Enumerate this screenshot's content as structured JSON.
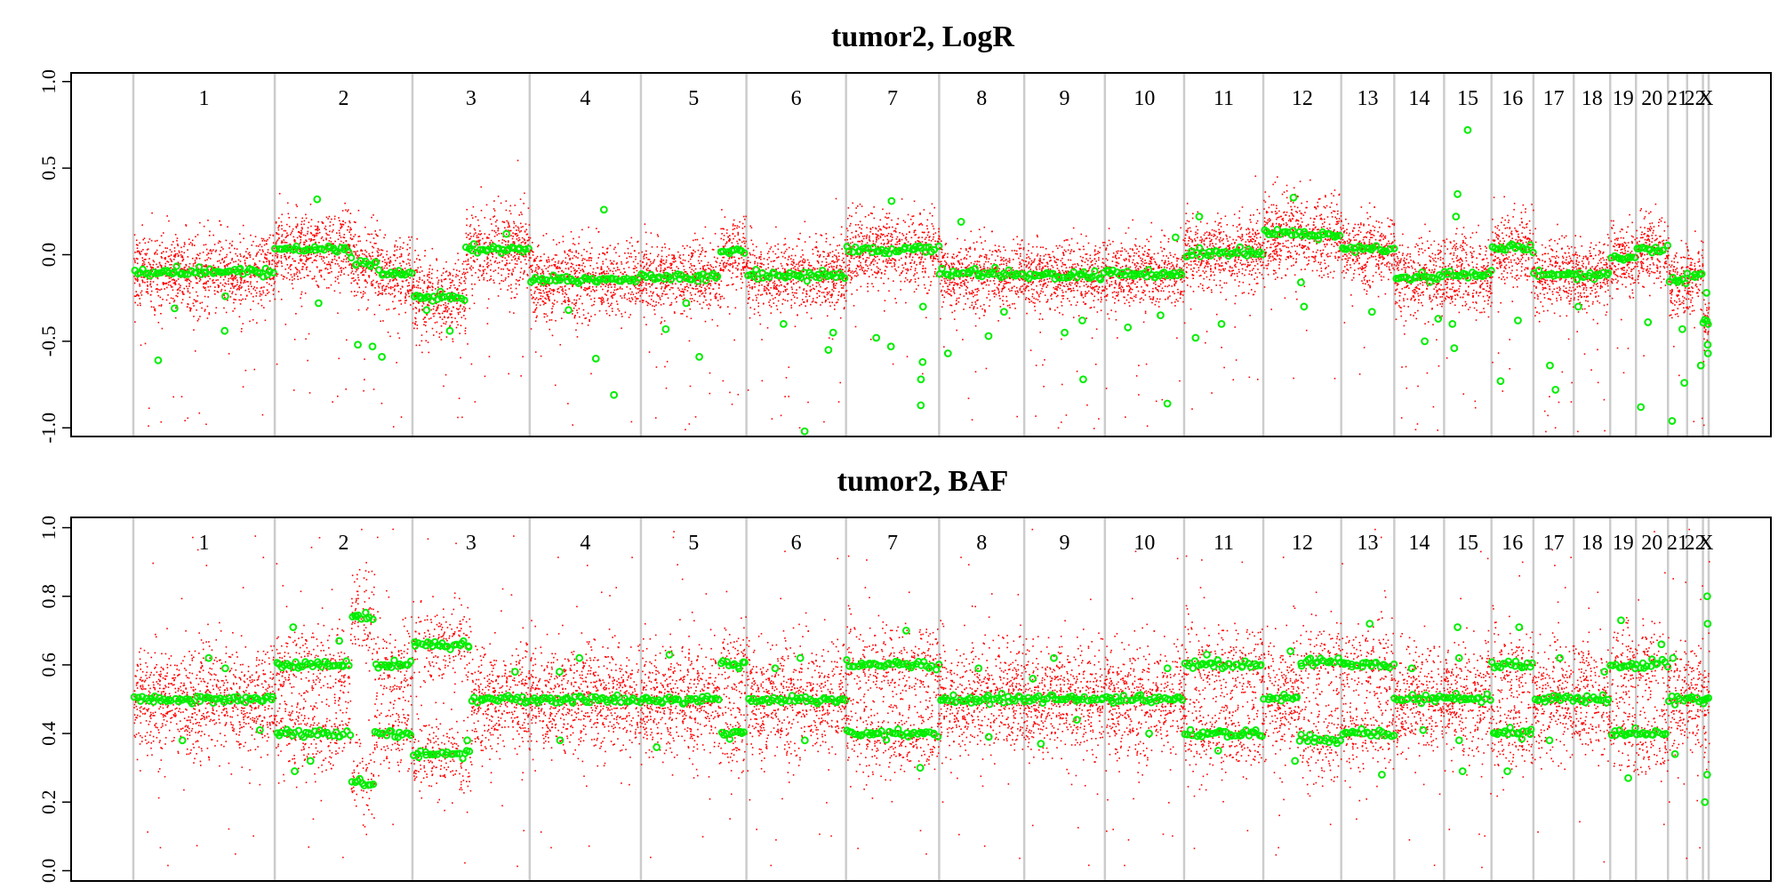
{
  "chart_data": [
    {
      "type": "scatter",
      "title": "tumor2, LogR",
      "xlabel": "",
      "ylabel": "",
      "ylim": [
        -1.05,
        1.05
      ],
      "yticks": [
        -1.0,
        -0.5,
        0.0,
        0.5,
        1.0
      ],
      "ytick_labels": [
        "-1.0",
        "-0.5",
        "0.0",
        "0.5",
        "1.0"
      ],
      "grid": false,
      "point_colors": {
        "raw": "#ff0000",
        "segmented": "#00ee00"
      },
      "chromosomes": [
        {
          "label": "1",
          "size": 0.0866,
          "segments": [
            {
              "from": 0,
              "to": 1,
              "level": -0.1
            }
          ],
          "spread": 0.2,
          "outliers": [
            -0.31,
            -0.61,
            -0.44,
            -0.24
          ]
        },
        {
          "label": "2",
          "size": 0.0843,
          "segments": [
            {
              "from": 0,
              "to": 0.55,
              "level": 0.03
            },
            {
              "from": 0.55,
              "to": 0.75,
              "level": -0.05
            },
            {
              "from": 0.75,
              "to": 1,
              "level": -0.11
            }
          ],
          "spread": 0.2,
          "outliers": [
            -0.52,
            -0.59,
            0.32,
            -0.28,
            -0.53
          ]
        },
        {
          "label": "3",
          "size": 0.0718,
          "segments": [
            {
              "from": 0,
              "to": 0.45,
              "level": -0.24
            },
            {
              "from": 0.45,
              "to": 1,
              "level": 0.03
            }
          ],
          "spread": 0.22,
          "outliers": [
            -0.44,
            -0.32,
            0.12
          ]
        },
        {
          "label": "4",
          "size": 0.0681,
          "segments": [
            {
              "from": 0,
              "to": 1,
              "level": -0.14
            }
          ],
          "spread": 0.2,
          "outliers": [
            -0.81,
            -0.6,
            0.26,
            -0.32
          ]
        },
        {
          "label": "5",
          "size": 0.0646,
          "segments": [
            {
              "from": 0,
              "to": 0.75,
              "level": -0.13
            },
            {
              "from": 0.75,
              "to": 1,
              "level": 0.02
            }
          ],
          "spread": 0.19,
          "outliers": [
            -0.59,
            -0.43,
            -0.28
          ]
        },
        {
          "label": "6",
          "size": 0.061,
          "segments": [
            {
              "from": 0,
              "to": 1,
              "level": -0.12
            }
          ],
          "spread": 0.19,
          "outliers": [
            -1.02,
            -0.4,
            -0.55,
            -0.45
          ]
        },
        {
          "label": "7",
          "size": 0.057,
          "segments": [
            {
              "from": 0,
              "to": 1,
              "level": 0.03
            }
          ],
          "spread": 0.2,
          "outliers": [
            -0.87,
            -0.72,
            -0.62,
            -0.53,
            -0.48,
            0.31,
            -0.3
          ]
        },
        {
          "label": "8",
          "size": 0.0521,
          "segments": [
            {
              "from": 0,
              "to": 1,
              "level": -0.11
            }
          ],
          "spread": 0.18,
          "outliers": [
            -0.57,
            -0.47,
            0.19,
            -0.33
          ]
        },
        {
          "label": "9",
          "size": 0.0494,
          "segments": [
            {
              "from": 0,
              "to": 1,
              "level": -0.12
            }
          ],
          "spread": 0.18,
          "outliers": [
            -0.72,
            -0.45,
            -0.38
          ]
        },
        {
          "label": "10",
          "size": 0.0485,
          "segments": [
            {
              "from": 0,
              "to": 1,
              "level": -0.11
            }
          ],
          "spread": 0.18,
          "outliers": [
            -0.86,
            -0.42,
            -0.35,
            0.1
          ]
        },
        {
          "label": "11",
          "size": 0.0485,
          "segments": [
            {
              "from": 0,
              "to": 1,
              "level": 0.01
            }
          ],
          "spread": 0.19,
          "outliers": [
            -0.48,
            -0.4,
            0.22
          ]
        },
        {
          "label": "12",
          "size": 0.0477,
          "segments": [
            {
              "from": 0,
              "to": 0.4,
              "level": 0.13
            },
            {
              "from": 0.4,
              "to": 1,
              "level": 0.11
            }
          ],
          "spread": 0.22,
          "outliers": [
            -0.3,
            0.33,
            -0.16
          ]
        },
        {
          "label": "13",
          "size": 0.0325,
          "segments": [
            {
              "from": 0,
              "to": 1,
              "level": 0.03
            }
          ],
          "spread": 0.18,
          "outliers": [
            -0.33
          ]
        },
        {
          "label": "14",
          "size": 0.0305,
          "segments": [
            {
              "from": 0,
              "to": 1,
              "level": -0.13
            }
          ],
          "spread": 0.2,
          "outliers": [
            -0.5,
            -0.37
          ]
        },
        {
          "label": "15",
          "size": 0.029,
          "segments": [
            {
              "from": 0,
              "to": 1,
              "level": -0.11
            }
          ],
          "spread": 0.2,
          "outliers": [
            0.72,
            0.35,
            0.22,
            -0.4,
            -0.54
          ]
        },
        {
          "label": "16",
          "size": 0.0257,
          "segments": [
            {
              "from": 0,
              "to": 1,
              "level": 0.04
            }
          ],
          "spread": 0.2,
          "outliers": [
            -0.73,
            -0.38
          ]
        },
        {
          "label": "17",
          "size": 0.0247,
          "segments": [
            {
              "from": 0,
              "to": 1,
              "level": -0.12
            }
          ],
          "spread": 0.18,
          "outliers": [
            -0.64,
            -0.78
          ]
        },
        {
          "label": "18",
          "size": 0.0223,
          "segments": [
            {
              "from": 0,
              "to": 1,
              "level": -0.12
            }
          ],
          "spread": 0.18,
          "outliers": [
            -0.3
          ]
        },
        {
          "label": "19",
          "size": 0.0158,
          "segments": [
            {
              "from": 0,
              "to": 1,
              "level": -0.02
            }
          ],
          "spread": 0.18,
          "outliers": []
        },
        {
          "label": "20",
          "size": 0.0196,
          "segments": [
            {
              "from": 0,
              "to": 1,
              "level": 0.03
            }
          ],
          "spread": 0.18,
          "outliers": [
            -0.88,
            -0.39
          ]
        },
        {
          "label": "21",
          "size": 0.0117,
          "segments": [
            {
              "from": 0,
              "to": 1,
              "level": -0.15
            }
          ],
          "spread": 0.18,
          "outliers": [
            -0.96,
            -0.74,
            -0.43
          ]
        },
        {
          "label": "22",
          "size": 0.0097,
          "segments": [
            {
              "from": 0,
              "to": 1,
              "level": -0.12
            }
          ],
          "spread": 0.18,
          "outliers": [
            -0.64
          ]
        },
        {
          "label": "X",
          "size": 0.0035,
          "segments": [
            {
              "from": 0,
              "to": 1,
              "level": -0.4
            }
          ],
          "spread": 0.15,
          "outliers": [
            -0.22,
            -0.52,
            -0.57
          ]
        }
      ]
    },
    {
      "type": "scatter",
      "title": "tumor2, BAF",
      "xlabel": "",
      "ylabel": "",
      "ylim": [
        -0.03,
        1.03
      ],
      "yticks": [
        0.0,
        0.2,
        0.4,
        0.6,
        0.8,
        1.0
      ],
      "ytick_labels": [
        "0.0",
        "0.2",
        "0.4",
        "0.6",
        "0.8",
        "1.0"
      ],
      "grid": false,
      "point_colors": {
        "raw": "#ff0000",
        "segmented": "#00ee00"
      },
      "chromosomes": [
        {
          "label": "1",
          "size": 0.0866,
          "segments": [
            {
              "from": 0,
              "to": 1,
              "bands": [
                0.5
              ]
            }
          ],
          "outliers": [
            0.59,
            0.41,
            0.62,
            0.38
          ]
        },
        {
          "label": "2",
          "size": 0.0843,
          "segments": [
            {
              "from": 0,
              "to": 0.55,
              "bands": [
                0.6,
                0.4
              ]
            },
            {
              "from": 0.55,
              "to": 0.72,
              "bands": [
                0.74,
                0.26
              ]
            },
            {
              "from": 0.72,
              "to": 1,
              "bands": [
                0.6,
                0.4
              ]
            }
          ],
          "outliers": [
            0.71,
            0.29,
            0.32,
            0.67
          ]
        },
        {
          "label": "3",
          "size": 0.0718,
          "segments": [
            {
              "from": 0,
              "to": 0.5,
              "bands": [
                0.66,
                0.34
              ]
            },
            {
              "from": 0.5,
              "to": 1,
              "bands": [
                0.5
              ]
            }
          ],
          "outliers": [
            0.58,
            0.38
          ]
        },
        {
          "label": "4",
          "size": 0.0681,
          "segments": [
            {
              "from": 0,
              "to": 1,
              "bands": [
                0.5
              ]
            }
          ],
          "outliers": [
            0.62,
            0.38,
            0.58
          ]
        },
        {
          "label": "5",
          "size": 0.0646,
          "segments": [
            {
              "from": 0,
              "to": 0.75,
              "bands": [
                0.5
              ]
            },
            {
              "from": 0.75,
              "to": 1,
              "bands": [
                0.6,
                0.4
              ]
            }
          ],
          "outliers": [
            0.63,
            0.36
          ]
        },
        {
          "label": "6",
          "size": 0.061,
          "segments": [
            {
              "from": 0,
              "to": 1,
              "bands": [
                0.5
              ]
            }
          ],
          "outliers": [
            0.62,
            0.38,
            0.59
          ]
        },
        {
          "label": "7",
          "size": 0.057,
          "segments": [
            {
              "from": 0,
              "to": 1,
              "bands": [
                0.6,
                0.4
              ]
            }
          ],
          "outliers": [
            0.7,
            0.3
          ]
        },
        {
          "label": "8",
          "size": 0.0521,
          "segments": [
            {
              "from": 0,
              "to": 1,
              "bands": [
                0.5
              ]
            }
          ],
          "outliers": [
            0.59,
            0.39
          ]
        },
        {
          "label": "9",
          "size": 0.0494,
          "segments": [
            {
              "from": 0,
              "to": 1,
              "bands": [
                0.5
              ]
            }
          ],
          "outliers": [
            0.62,
            0.37,
            0.56,
            0.44
          ]
        },
        {
          "label": "10",
          "size": 0.0485,
          "segments": [
            {
              "from": 0,
              "to": 1,
              "bands": [
                0.5
              ]
            }
          ],
          "outliers": [
            0.59,
            0.4
          ]
        },
        {
          "label": "11",
          "size": 0.0485,
          "segments": [
            {
              "from": 0,
              "to": 1,
              "bands": [
                0.6,
                0.4
              ]
            }
          ],
          "outliers": [
            0.63,
            0.35
          ]
        },
        {
          "label": "12",
          "size": 0.0477,
          "segments": [
            {
              "from": 0,
              "to": 0.45,
              "bands": [
                0.5
              ]
            },
            {
              "from": 0.45,
              "to": 1,
              "bands": [
                0.61,
                0.38
              ]
            }
          ],
          "outliers": [
            0.64,
            0.32
          ]
        },
        {
          "label": "13",
          "size": 0.0325,
          "segments": [
            {
              "from": 0,
              "to": 1,
              "bands": [
                0.6,
                0.4
              ]
            }
          ],
          "outliers": [
            0.72,
            0.28
          ]
        },
        {
          "label": "14",
          "size": 0.0305,
          "segments": [
            {
              "from": 0,
              "to": 1,
              "bands": [
                0.5
              ]
            }
          ],
          "outliers": [
            0.59,
            0.41
          ]
        },
        {
          "label": "15",
          "size": 0.029,
          "segments": [
            {
              "from": 0,
              "to": 1,
              "bands": [
                0.5
              ]
            }
          ],
          "outliers": [
            0.71,
            0.29,
            0.62,
            0.38
          ]
        },
        {
          "label": "16",
          "size": 0.0257,
          "segments": [
            {
              "from": 0,
              "to": 1,
              "bands": [
                0.6,
                0.4
              ]
            }
          ],
          "outliers": [
            0.71,
            0.29
          ]
        },
        {
          "label": "17",
          "size": 0.0247,
          "segments": [
            {
              "from": 0,
              "to": 1,
              "bands": [
                0.5
              ]
            }
          ],
          "outliers": [
            0.62,
            0.38
          ]
        },
        {
          "label": "18",
          "size": 0.0223,
          "segments": [
            {
              "from": 0,
              "to": 1,
              "bands": [
                0.5
              ]
            }
          ],
          "outliers": [
            0.58
          ]
        },
        {
          "label": "19",
          "size": 0.0158,
          "segments": [
            {
              "from": 0,
              "to": 1,
              "bands": [
                0.6,
                0.4
              ]
            }
          ],
          "outliers": [
            0.73,
            0.27
          ]
        },
        {
          "label": "20",
          "size": 0.0196,
          "segments": [
            {
              "from": 0,
              "to": 1,
              "bands": [
                0.6,
                0.4
              ]
            }
          ],
          "outliers": [
            0.66
          ]
        },
        {
          "label": "21",
          "size": 0.0117,
          "segments": [
            {
              "from": 0,
              "to": 1,
              "bands": [
                0.5
              ]
            }
          ],
          "outliers": [
            0.62,
            0.34
          ]
        },
        {
          "label": "22",
          "size": 0.0097,
          "segments": [
            {
              "from": 0,
              "to": 1,
              "bands": [
                0.5
              ]
            }
          ],
          "outliers": []
        },
        {
          "label": "X",
          "size": 0.0035,
          "segments": [
            {
              "from": 0,
              "to": 1,
              "bands": [
                0.5
              ]
            }
          ],
          "outliers": [
            0.8,
            0.72,
            0.28,
            0.2
          ]
        }
      ]
    }
  ]
}
